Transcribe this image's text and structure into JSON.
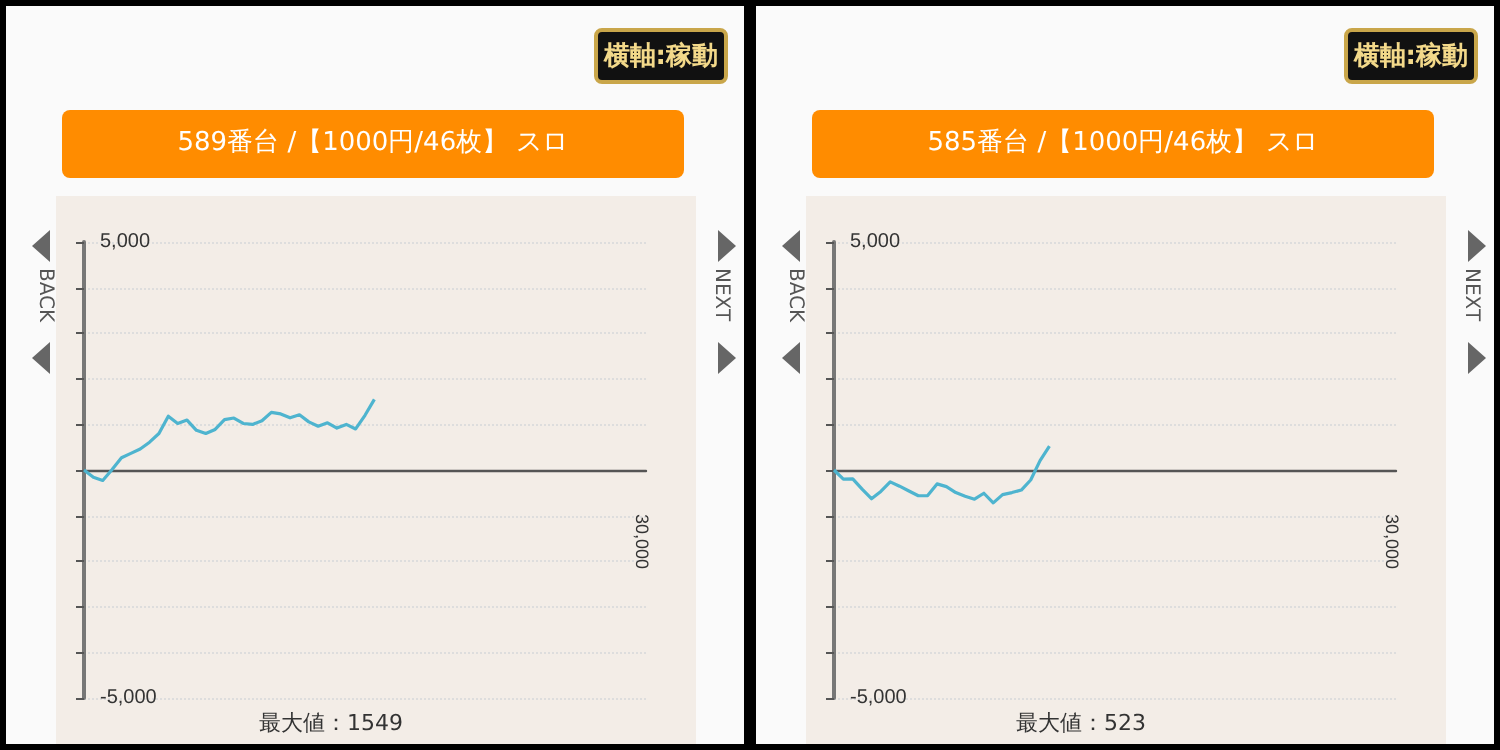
{
  "chart_data": [
    {
      "type": "line",
      "title": "589番台 /【1000円/46枚】 スロ",
      "annotations": [
        "横軸:稼動",
        "BACK",
        "NEXT",
        "最大値：1549",
        "30,000"
      ],
      "categories": [
        null,
        null,
        null,
        null,
        null,
        null,
        null,
        null,
        null,
        null,
        null,
        null,
        null,
        null,
        null,
        null,
        null,
        null,
        null,
        null,
        null,
        null,
        null,
        null,
        null,
        null,
        null,
        null,
        null,
        null,
        null,
        null,
        null,
        null,
        null,
        null,
        null,
        null,
        null,
        null,
        null,
        null,
        null,
        null,
        null,
        null,
        null,
        null,
        null,
        null,
        null,
        null,
        null,
        null,
        null,
        null,
        null,
        null,
        null,
        null,
        null
      ],
      "series": [
        {
          "color": "#4eb4cf",
          "values": [
            0,
            -160,
            -230,
            10,
            270,
            365,
            460,
            610,
            800,
            1180,
            1020,
            1095,
            870,
            800,
            890,
            1105,
            1140,
            1020,
            1000,
            1080,
            1265,
            1230,
            1145,
            1210,
            1055,
            960,
            1035,
            920,
            1000,
            900,
            1200,
            1549,
            null,
            null,
            null,
            null,
            null,
            null,
            null,
            null,
            null,
            null,
            null,
            null,
            null,
            null,
            null,
            null,
            null,
            null,
            null,
            null,
            null,
            null,
            null,
            null,
            null,
            null,
            null,
            null,
            null
          ]
        }
      ],
      "ylim": [
        -5000,
        5000
      ],
      "yticks": [
        {
          "value": -5000,
          "label": "-5,000"
        },
        {
          "value": -4000,
          "label": null
        },
        {
          "value": -3000,
          "label": null
        },
        {
          "value": -2000,
          "label": null
        },
        {
          "value": -1000,
          "label": null
        },
        {
          "value": 0,
          "label": null
        },
        {
          "value": 1000,
          "label": null
        },
        {
          "value": 2000,
          "label": null
        },
        {
          "value": 3000,
          "label": null
        },
        {
          "value": 4000,
          "label": null
        },
        {
          "value": 5000,
          "label": "5,000"
        }
      ],
      "grid": "y",
      "marker": "none"
    },
    {
      "type": "line",
      "title": "585番台 /【1000円/46枚】 スロ",
      "annotations": [
        "横軸:稼動",
        "BACK",
        "NEXT",
        "最大値：523",
        "30,000"
      ],
      "categories": [
        null,
        null,
        null,
        null,
        null,
        null,
        null,
        null,
        null,
        null,
        null,
        null,
        null,
        null,
        null,
        null,
        null,
        null,
        null,
        null,
        null,
        null,
        null,
        null,
        null,
        null,
        null,
        null,
        null,
        null,
        null,
        null,
        null,
        null,
        null,
        null,
        null,
        null,
        null,
        null,
        null,
        null,
        null,
        null,
        null,
        null,
        null,
        null,
        null,
        null,
        null,
        null,
        null,
        null,
        null,
        null,
        null,
        null,
        null,
        null,
        null
      ],
      "series": [
        {
          "color": "#4eb4cf",
          "values": [
            0,
            -200,
            -195,
            -420,
            -630,
            -470,
            -260,
            -355,
            -460,
            -565,
            -560,
            -305,
            -365,
            -495,
            -575,
            -640,
            -510,
            -720,
            -540,
            -495,
            -440,
            -220,
            205,
            523,
            null,
            null,
            null,
            null,
            null,
            null,
            null,
            null,
            null,
            null,
            null,
            null,
            null,
            null,
            null,
            null,
            null,
            null,
            null,
            null,
            null,
            null,
            null,
            null,
            null,
            null,
            null,
            null,
            null,
            null,
            null,
            null,
            null,
            null,
            null,
            null,
            null
          ]
        }
      ],
      "ylim": [
        -5000,
        5000
      ],
      "yticks": [
        {
          "value": -5000,
          "label": "-5,000"
        },
        {
          "value": -4000,
          "label": null
        },
        {
          "value": -3000,
          "label": null
        },
        {
          "value": -2000,
          "label": null
        },
        {
          "value": -1000,
          "label": null
        },
        {
          "value": 0,
          "label": null
        },
        {
          "value": 1000,
          "label": null
        },
        {
          "value": 2000,
          "label": null
        },
        {
          "value": 3000,
          "label": null
        },
        {
          "value": 4000,
          "label": null
        },
        {
          "value": 5000,
          "label": "5,000"
        }
      ],
      "grid": "y",
      "marker": "none"
    }
  ]
}
